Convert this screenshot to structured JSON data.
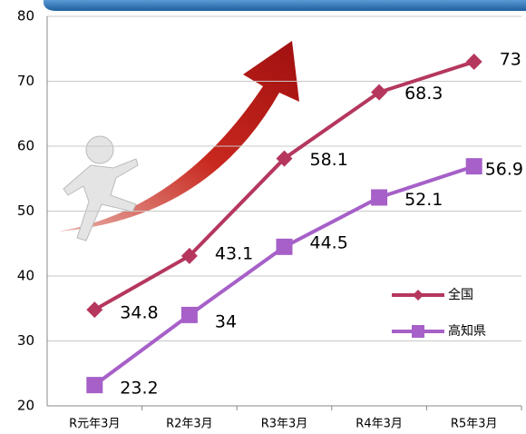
{
  "chart_data": {
    "type": "line",
    "categories": [
      "R元年3月",
      "R2年3月",
      "R3年3月",
      "R4年3月",
      "R5年3月"
    ],
    "series": [
      {
        "name": "全国",
        "color": "#b5375e",
        "marker": "diamond",
        "values": [
          34.8,
          43.1,
          58.1,
          68.3,
          73
        ]
      },
      {
        "name": "高知県",
        "color": "#a660c8",
        "marker": "square",
        "values": [
          23.2,
          34,
          44.5,
          52.1,
          56.9
        ]
      }
    ],
    "ylim": [
      20,
      80
    ],
    "yticks": [
      20,
      30,
      40,
      50,
      60,
      70,
      80
    ],
    "grid": true
  }
}
